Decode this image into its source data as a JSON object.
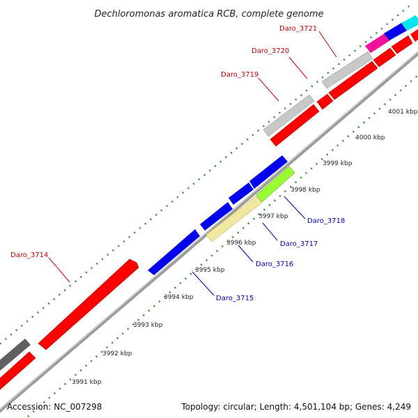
{
  "title": "Dechloromonas aromatica RCB, complete genome",
  "accession": "Accession: NC_007298",
  "summary": "Topology: circular; Length: 4,501,104 bp; Genes: 4,249",
  "colors": {
    "backbone": "#8a8a8a",
    "tick_dots": "#2e8b2e",
    "forward_label": "#cc0000",
    "reverse_label": "#0000bb"
  },
  "ticks": [
    "3991 kbp",
    "3992 kbp",
    "3993 kbp",
    "3994 kbp",
    "3995 kbp",
    "3996 kbp",
    "3997 kbp",
    "3998 kbp",
    "3999 kbp",
    "4000 kbp",
    "4001 kbp"
  ],
  "forward_labels": [
    "Daro_3714",
    "Daro_3719",
    "Daro_3720",
    "Daro_3721"
  ],
  "reverse_labels": [
    "Daro_3715",
    "Daro_3716",
    "Daro_3717",
    "Daro_3718"
  ],
  "gene_colors": {
    "red": "#ff0000",
    "gray": "#c8c8c8",
    "darkgray": "#606060",
    "magenta": "#ee1199",
    "blue": "#0000ee",
    "cyan": "#00e5ee",
    "yellow": "#f0e8a0",
    "lime": "#99ff33"
  }
}
